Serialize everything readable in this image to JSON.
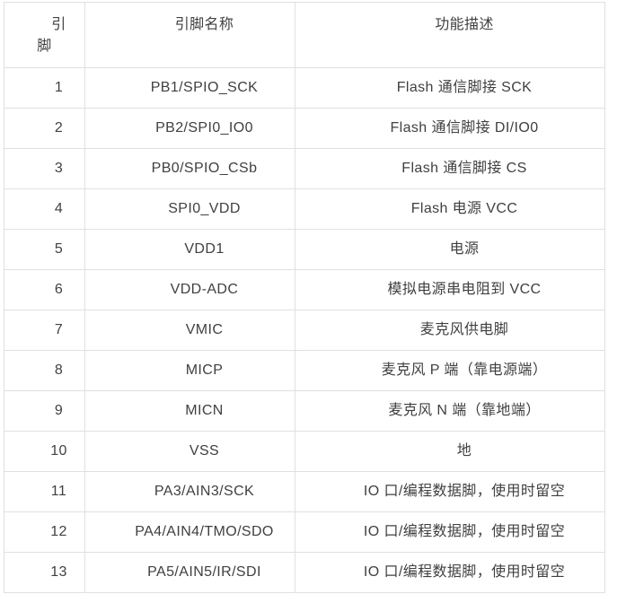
{
  "page": {
    "background_color": "#ffffff",
    "text_color": "#404040",
    "border_color": "#e0e0e0"
  },
  "table": {
    "columns": [
      {
        "key": "pin",
        "label": "引脚"
      },
      {
        "key": "name",
        "label": "引脚名称"
      },
      {
        "key": "desc",
        "label": "功能描述"
      }
    ],
    "rows": [
      {
        "pin": "1",
        "name": "PB1/SPIO_SCK",
        "desc": "Flash 通信脚接 SCK"
      },
      {
        "pin": "2",
        "name": "PB2/SPI0_IO0",
        "desc": "Flash 通信脚接 DI/IO0"
      },
      {
        "pin": "3",
        "name": "PB0/SPIO_CSb",
        "desc": "Flash 通信脚接 CS"
      },
      {
        "pin": "4",
        "name": "SPI0_VDD",
        "desc": "Flash 电源 VCC"
      },
      {
        "pin": "5",
        "name": "VDD1",
        "desc": "电源"
      },
      {
        "pin": "6",
        "name": "VDD-ADC",
        "desc": "模拟电源串电阻到 VCC"
      },
      {
        "pin": "7",
        "name": "VMIC",
        "desc": "麦克风供电脚"
      },
      {
        "pin": "8",
        "name": "MICP",
        "desc": "麦克风 P 端（靠电源端）"
      },
      {
        "pin": "9",
        "name": "MICN",
        "desc": "麦克风 N 端（靠地端）"
      },
      {
        "pin": "10",
        "name": "VSS",
        "desc": "地"
      },
      {
        "pin": "11",
        "name": "PA3/AIN3/SCK",
        "desc": "IO 口/编程数据脚，使用时留空"
      },
      {
        "pin": "12",
        "name": "PA4/AIN4/TMO/SDO",
        "desc": "IO 口/编程数据脚，使用时留空"
      },
      {
        "pin": "13",
        "name": "PA5/AIN5/IR/SDI",
        "desc": "IO 口/编程数据脚，使用时留空"
      }
    ]
  }
}
